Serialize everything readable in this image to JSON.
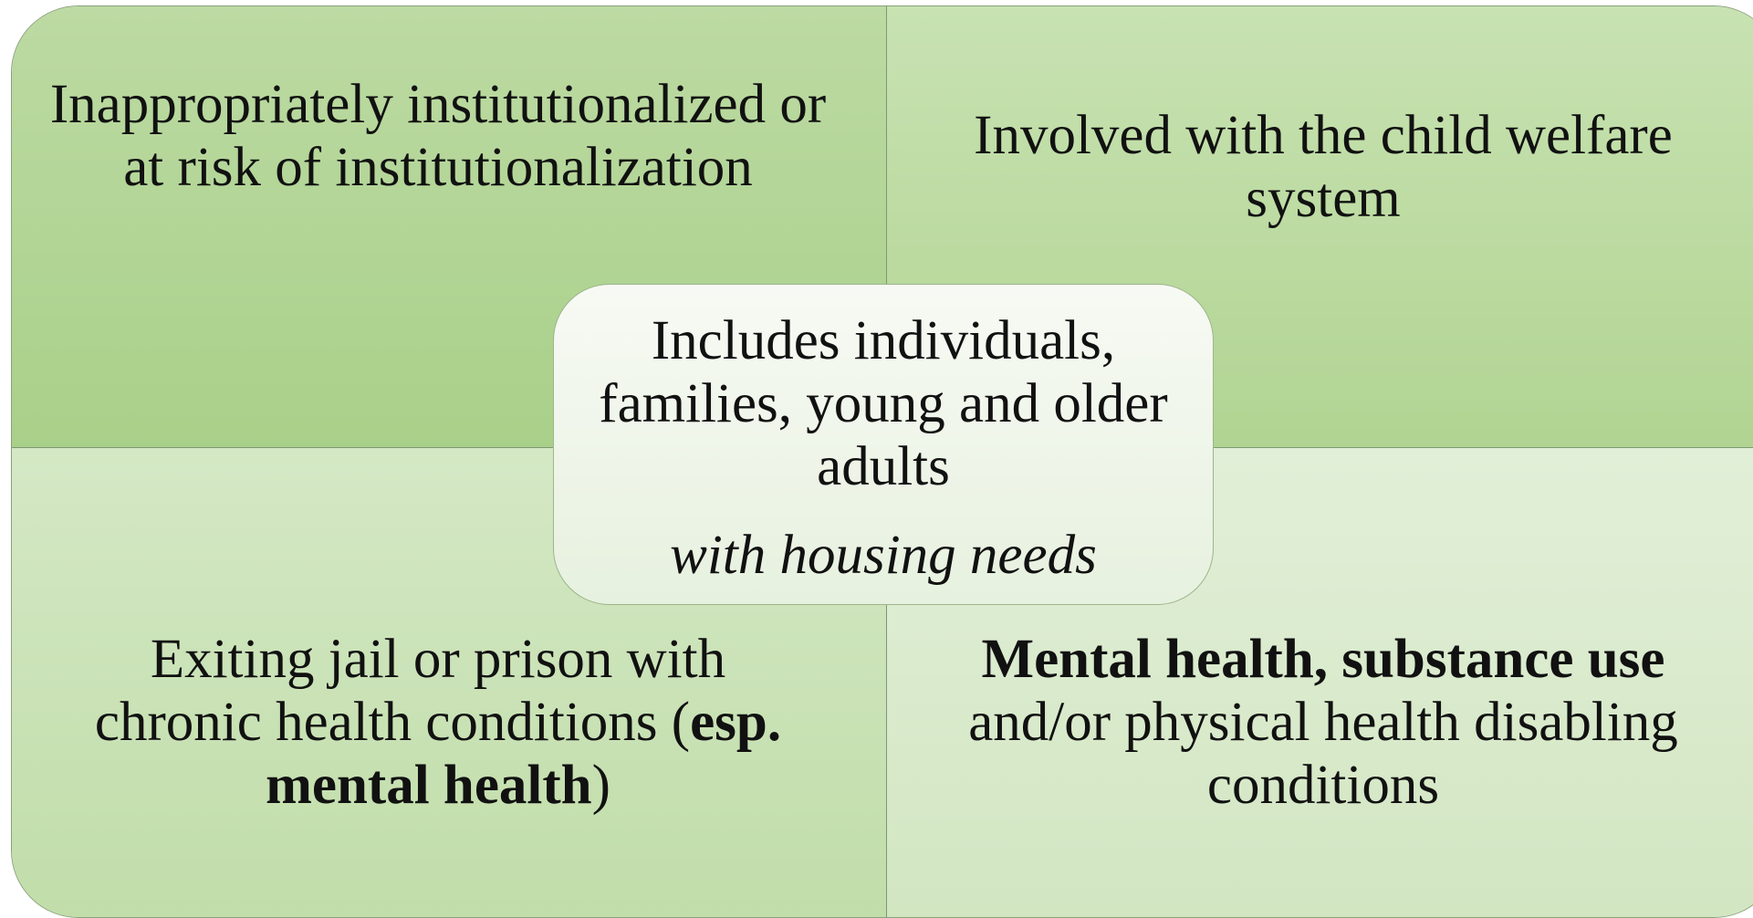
{
  "quadrants": [
    {
      "text": "Inappropriately institutionalized or at risk of institutionalization"
    },
    {
      "text": "Involved with the child welfare system"
    },
    {
      "parts": [
        "Exiting jail or prison with chronic health conditions (",
        "esp. mental health",
        ")"
      ]
    },
    {
      "parts": [
        "Mental health, substance use",
        " and/or physical health disabling conditions"
      ]
    }
  ],
  "center": {
    "text": "Includes individuals, families, young and older adults",
    "emphasis": "with housing needs"
  }
}
